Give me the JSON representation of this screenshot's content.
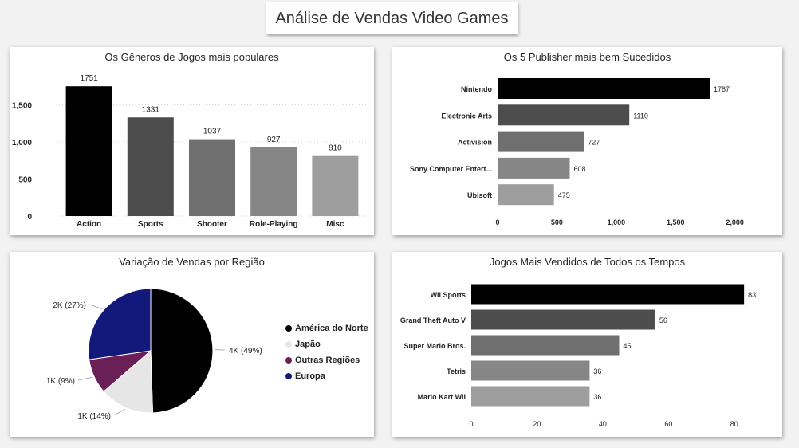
{
  "dashboard": {
    "title": "Análise de Vendas Video Games"
  },
  "colors": {
    "shades": [
      "#000000",
      "#4d4d4d",
      "#6f6f6f",
      "#868686",
      "#9e9e9e"
    ]
  },
  "genres": {
    "title": "Os Gêneros de Jogos mais populares",
    "chart_data": {
      "type": "bar",
      "title": "Os Gêneros de Jogos mais populares",
      "categories": [
        "Action",
        "Sports",
        "Shooter",
        "Role-Playing",
        "Misc"
      ],
      "values": [
        1751,
        1331,
        1037,
        927,
        810
      ],
      "ylim": [
        0,
        1850
      ],
      "yticks": [
        0,
        500,
        1000,
        1500
      ],
      "ytick_labels": [
        "0",
        "500",
        "1,000",
        "1,500"
      ],
      "grid": true
    }
  },
  "publishers": {
    "title": "Os 5 Publisher mais bem Sucedidos",
    "chart_data": {
      "type": "bar",
      "orientation": "horizontal",
      "title": "Os 5 Publisher mais bem Sucedidos",
      "categories": [
        "Nintendo",
        "Electronic Arts",
        "Activision",
        "Sony Computer Entert...",
        "Ubisoft"
      ],
      "values": [
        1787,
        1110,
        727,
        608,
        475
      ],
      "xlim": [
        0,
        2150
      ],
      "xticks": [
        0,
        500,
        1000,
        1500,
        2000
      ],
      "xtick_labels": [
        "0",
        "500",
        "1,000",
        "1,500",
        "2,000"
      ]
    }
  },
  "regions": {
    "title": "Variação de Vendas por Região",
    "chart_data": {
      "type": "pie",
      "title": "Variação de Vendas por Região",
      "categories": [
        "América do Norte",
        "Japão",
        "Outras Regiões",
        "Europa"
      ],
      "values": [
        49,
        14,
        9,
        27
      ],
      "data_labels": [
        "4K (49%)",
        "1K (14%)",
        "1K (9%)",
        "2K (27%)"
      ],
      "colors": [
        "#000000",
        "#e6e6e6",
        "#6b1f57",
        "#12197a"
      ],
      "legend": "right"
    }
  },
  "games": {
    "title": "Jogos Mais Vendidos de Todos os Tempos",
    "chart_data": {
      "type": "bar",
      "orientation": "horizontal",
      "title": "Jogos Mais Vendidos de Todos os Tempos",
      "categories": [
        "Wii Sports",
        "Grand Theft Auto V",
        "Super Mario Bros.",
        "Tetris",
        "Mario Kart Wii"
      ],
      "values": [
        83,
        56,
        45,
        36,
        36
      ],
      "xlim": [
        0,
        90
      ],
      "xticks": [
        0,
        20,
        40,
        60,
        80
      ],
      "xtick_labels": [
        "0",
        "20",
        "40",
        "60",
        "80"
      ]
    }
  }
}
